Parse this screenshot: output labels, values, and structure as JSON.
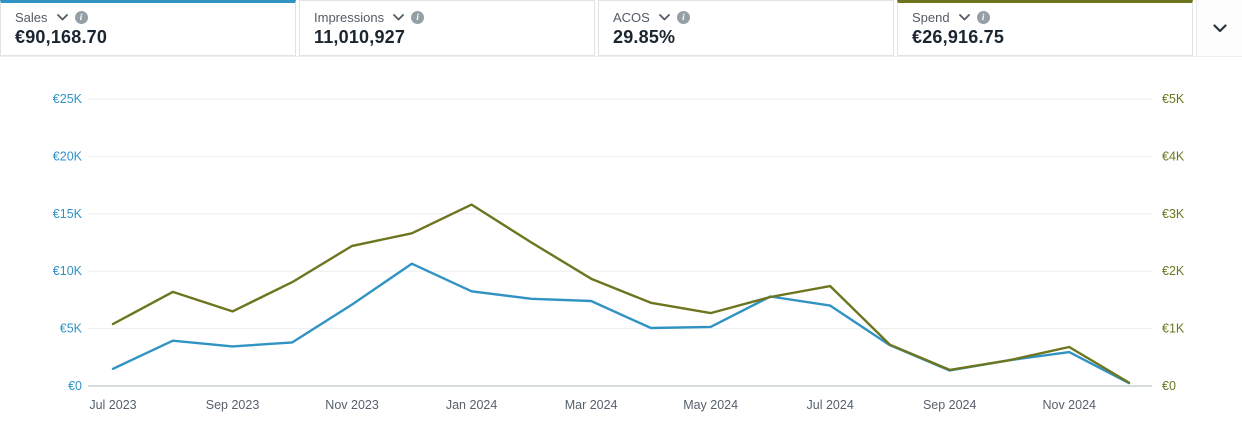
{
  "metrics": [
    {
      "label": "Sales",
      "value": "€90,168.70",
      "accent": "#3193c4",
      "selected": true
    },
    {
      "label": "Impressions",
      "value": "11,010,927",
      "accent": "",
      "selected": false
    },
    {
      "label": "ACOS",
      "value": "29.85%",
      "accent": "",
      "selected": false
    },
    {
      "label": "Spend",
      "value": "€26,916.75",
      "accent": "#6d761f",
      "selected": true
    }
  ],
  "panel": {
    "collapse_icon": "chevron-down"
  },
  "chart_data": {
    "type": "line",
    "x": [
      "Jul 2023",
      "Aug 2023",
      "Sep 2023",
      "Oct 2023",
      "Nov 2023",
      "Dec 2023",
      "Jan 2024",
      "Feb 2024",
      "Mar 2024",
      "Apr 2024",
      "May 2024",
      "Jun 2024",
      "Jul 2024",
      "Aug 2024",
      "Sep 2024",
      "Oct 2024",
      "Nov 2024",
      "Dec 2024"
    ],
    "x_tick_labels": [
      "Jul 2023",
      "Sep 2023",
      "Nov 2023",
      "Jan 2024",
      "Mar 2024",
      "May 2024",
      "Jul 2024",
      "Sep 2024",
      "Nov 2024"
    ],
    "x_tick_every": 2,
    "series": [
      {
        "name": "Sales",
        "axis": "left",
        "color": "#3193c4",
        "values": [
          1500,
          3950,
          3450,
          3800,
          7100,
          10650,
          8250,
          7600,
          7400,
          5050,
          5150,
          7800,
          7000,
          3550,
          1350,
          2250,
          2950,
          250
        ]
      },
      {
        "name": "Spend",
        "axis": "right",
        "color": "#6d761f",
        "values": [
          1080,
          1640,
          1300,
          1810,
          2440,
          2660,
          3160,
          2500,
          1870,
          1450,
          1270,
          1550,
          1740,
          720,
          280,
          450,
          680,
          60
        ]
      }
    ],
    "left_axis": {
      "tick_labels": [
        "€0",
        "€5K",
        "€10K",
        "€15K",
        "€20K",
        "€25K"
      ],
      "min": 0,
      "max": 25000,
      "label_color": "#3193c4"
    },
    "right_axis": {
      "tick_labels": [
        "€0",
        "€1K",
        "€2K",
        "€3K",
        "€4K",
        "€5K"
      ],
      "min": 0,
      "max": 5000,
      "label_color": "#6d761f"
    },
    "grid": true,
    "legend": "none",
    "x_label_color": "#56616c",
    "gridline_color": "#eceef0",
    "baseline_color": "#c9cfcf"
  }
}
